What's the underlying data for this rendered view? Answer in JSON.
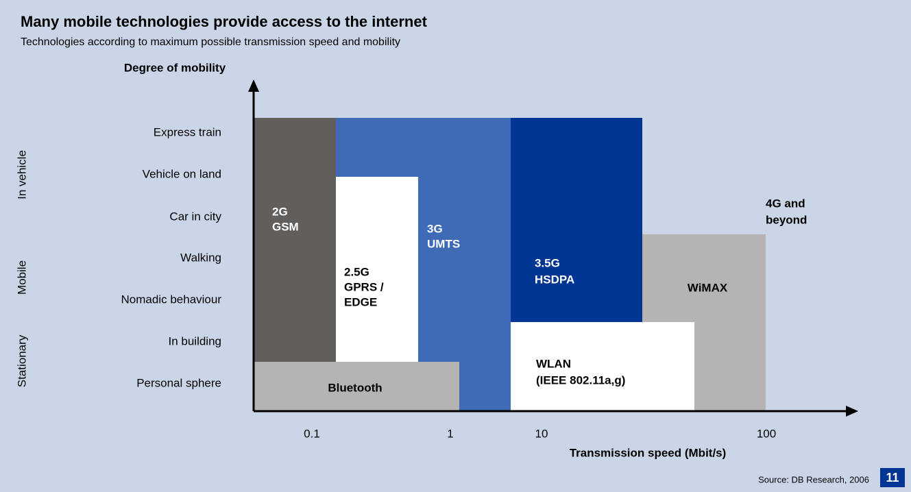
{
  "header": {
    "title": "Many mobile technologies provide access to the internet",
    "subtitle": "Technologies according to maximum possible transmission speed and mobility"
  },
  "y_axis": {
    "title": "Degree of mobility",
    "levels": [
      "Express train",
      "Vehicle on land",
      "Car in city",
      "Walking",
      "Nomadic behaviour",
      "In building",
      "Personal sphere"
    ],
    "groups": [
      "In vehicle",
      "Mobile",
      "Stationary"
    ]
  },
  "x_axis": {
    "title": "Transmission speed  (Mbit/s)",
    "ticks": [
      "0.1",
      "1",
      "10",
      "100"
    ]
  },
  "regions": [
    {
      "lines": [
        "2G",
        "GSM"
      ]
    },
    {
      "lines": [
        "2.5G",
        "GPRS /",
        "EDGE"
      ]
    },
    {
      "lines": [
        "3G",
        "UMTS"
      ]
    },
    {
      "lines": [
        "3.5G",
        "HSDPA"
      ]
    },
    {
      "lines": [
        "WiMAX"
      ]
    },
    {
      "lines": [
        "WLAN",
        "(IEEE 802.11a,g)"
      ]
    },
    {
      "lines": [
        "Bluetooth"
      ]
    },
    {
      "lines": [
        "4G and",
        "beyond"
      ]
    }
  ],
  "footer": {
    "source": "Source: DB Research, 2006",
    "page": "11"
  }
}
